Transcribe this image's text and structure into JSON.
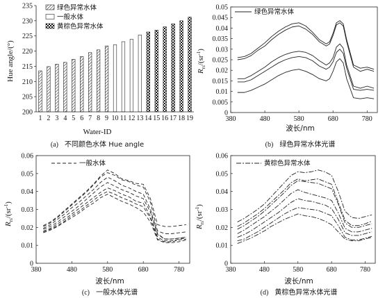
{
  "chart_data": [
    {
      "panel": "a",
      "type": "bar",
      "caption_label": "(a)",
      "caption_text": "不同颜色水体 Hue angle",
      "xlabel": "Water-ID",
      "ylabel": "Hue angle/(°)",
      "ylim": [
        200,
        235
      ],
      "yticks": [
        "200",
        "205",
        "210",
        "215",
        "220",
        "225",
        "230",
        "235"
      ],
      "categories": [
        "1",
        "2",
        "3",
        "4",
        "5",
        "6",
        "7",
        "8",
        "9",
        "10",
        "11",
        "12",
        "13",
        "14",
        "15",
        "16",
        "17",
        "18",
        "19"
      ],
      "groups": [
        "green",
        "green",
        "green",
        "green",
        "green",
        "green",
        "green",
        "green",
        "green",
        "normal",
        "normal",
        "normal",
        "normal",
        "brown",
        "brown",
        "brown",
        "brown",
        "brown",
        "brown"
      ],
      "values": [
        213.5,
        214.9,
        215.7,
        216.3,
        217.3,
        218.2,
        219.5,
        220.4,
        221.7,
        222.1,
        223.1,
        223.9,
        225.3,
        226.3,
        226.9,
        228.0,
        229.0,
        230.0,
        231.2
      ],
      "legend": [
        {
          "key": "green",
          "label": "绿色异常水体"
        },
        {
          "key": "normal",
          "label": "一般水体"
        },
        {
          "key": "brown",
          "label": "黄棕色异常水体"
        }
      ]
    },
    {
      "panel": "b",
      "type": "line",
      "caption_label": "(b)",
      "caption_text": "绿色异常水体光谱",
      "xlabel": "波长/nm",
      "ylabel_main": "R",
      "ylabel_sub": "rs",
      "ylabel_unit": "/(sr",
      "ylabel_exp": "-1",
      "ylabel_end": ")",
      "xlim": [
        380,
        810
      ],
      "ylim": [
        0,
        0.05
      ],
      "xticks": [
        "380",
        "480",
        "580",
        "680",
        "780"
      ],
      "yticks": [
        "0",
        "0.005",
        "0.01",
        "0.015",
        "0.02",
        "0.025",
        "0.03",
        "0.035",
        "0.04",
        "0.045",
        "0.05"
      ],
      "line_style": "solid",
      "legend": "绿色异常水体",
      "x": [
        400,
        420,
        440,
        460,
        480,
        500,
        520,
        540,
        560,
        580,
        600,
        620,
        640,
        660,
        670,
        680,
        690,
        700,
        710,
        720,
        740,
        760,
        780,
        800
      ],
      "series": [
        {
          "values": [
            0.026,
            0.0265,
            0.028,
            0.0305,
            0.033,
            0.036,
            0.0385,
            0.0405,
            0.042,
            0.0425,
            0.041,
            0.038,
            0.0345,
            0.0325,
            0.0335,
            0.0375,
            0.0425,
            0.0435,
            0.042,
            0.0345,
            0.0225,
            0.021,
            0.0215,
            0.0205
          ]
        },
        {
          "values": [
            0.025,
            0.0255,
            0.027,
            0.0295,
            0.0315,
            0.0345,
            0.037,
            0.039,
            0.0405,
            0.041,
            0.0395,
            0.037,
            0.0335,
            0.0315,
            0.0325,
            0.0365,
            0.0415,
            0.0425,
            0.041,
            0.0335,
            0.0215,
            0.0195,
            0.0205,
            0.0195
          ]
        },
        {
          "values": [
            0.016,
            0.016,
            0.0175,
            0.0195,
            0.0215,
            0.024,
            0.026,
            0.0275,
            0.0285,
            0.029,
            0.0285,
            0.027,
            0.0245,
            0.0225,
            0.0235,
            0.026,
            0.031,
            0.0325,
            0.0305,
            0.0225,
            0.0125,
            0.0115,
            0.0125,
            0.0115
          ]
        },
        {
          "values": [
            0.0145,
            0.0145,
            0.0155,
            0.0175,
            0.0195,
            0.0215,
            0.0235,
            0.025,
            0.026,
            0.0265,
            0.026,
            0.0245,
            0.022,
            0.0205,
            0.0215,
            0.024,
            0.0285,
            0.03,
            0.028,
            0.021,
            0.011,
            0.0105,
            0.011,
            0.0105
          ]
        },
        {
          "values": [
            0.0095,
            0.0095,
            0.0105,
            0.012,
            0.0135,
            0.0155,
            0.0175,
            0.019,
            0.02,
            0.0205,
            0.0195,
            0.018,
            0.016,
            0.015,
            0.016,
            0.0195,
            0.024,
            0.0255,
            0.0235,
            0.016,
            0.007,
            0.0065,
            0.007,
            0.0065
          ]
        }
      ]
    },
    {
      "panel": "c",
      "type": "line",
      "caption_label": "(c)",
      "caption_text": "一般水体光谱",
      "xlabel": "波长/nm",
      "ylabel_main": "R",
      "ylabel_sub": "rs",
      "ylabel_unit": "/(sr",
      "ylabel_exp": "-1",
      "ylabel_end": ")",
      "xlim": [
        380,
        810
      ],
      "ylim": [
        0,
        0.06
      ],
      "xticks": [
        "380",
        "480",
        "580",
        "680",
        "780"
      ],
      "yticks": [
        "0",
        "0.01",
        "0.02",
        "0.03",
        "0.04",
        "0.05",
        "0.06"
      ],
      "line_style": "dashed",
      "legend": "一般水体",
      "x": [
        400,
        420,
        440,
        460,
        480,
        500,
        520,
        540,
        560,
        580,
        600,
        620,
        640,
        660,
        680,
        700,
        720,
        740,
        760,
        780,
        800
      ],
      "series": [
        {
          "values": [
            0.021,
            0.023,
            0.026,
            0.0295,
            0.033,
            0.0365,
            0.04,
            0.044,
            0.0485,
            0.052,
            0.05,
            0.047,
            0.046,
            0.0445,
            0.044,
            0.036,
            0.0215,
            0.0205,
            0.0205,
            0.021,
            0.0215
          ]
        },
        {
          "values": [
            0.0205,
            0.0225,
            0.0255,
            0.029,
            0.0325,
            0.036,
            0.0395,
            0.0435,
            0.048,
            0.0505,
            0.049,
            0.0465,
            0.0455,
            0.0435,
            0.0425,
            0.034,
            0.018,
            0.0165,
            0.0165,
            0.017,
            0.0175
          ]
        },
        {
          "values": [
            0.0195,
            0.0215,
            0.0245,
            0.0275,
            0.031,
            0.034,
            0.0375,
            0.041,
            0.045,
            0.048,
            0.046,
            0.0435,
            0.042,
            0.04,
            0.0385,
            0.03,
            0.0165,
            0.0135,
            0.0135,
            0.014,
            0.0145
          ]
        },
        {
          "values": [
            0.019,
            0.0205,
            0.023,
            0.026,
            0.029,
            0.032,
            0.0355,
            0.039,
            0.0425,
            0.045,
            0.043,
            0.041,
            0.0395,
            0.0375,
            0.036,
            0.0285,
            0.016,
            0.0135,
            0.0135,
            0.014,
            0.0145
          ]
        },
        {
          "values": [
            0.018,
            0.0195,
            0.022,
            0.0245,
            0.0275,
            0.0305,
            0.0335,
            0.0365,
            0.0395,
            0.042,
            0.0405,
            0.0385,
            0.037,
            0.0345,
            0.0335,
            0.026,
            0.0145,
            0.0125,
            0.0125,
            0.0135,
            0.014
          ]
        },
        {
          "values": [
            0.0175,
            0.019,
            0.021,
            0.0235,
            0.0265,
            0.029,
            0.032,
            0.035,
            0.038,
            0.04,
            0.0385,
            0.0365,
            0.035,
            0.033,
            0.0315,
            0.025,
            0.0135,
            0.012,
            0.012,
            0.013,
            0.0135
          ]
        },
        {
          "values": [
            0.017,
            0.0185,
            0.0205,
            0.023,
            0.0255,
            0.028,
            0.031,
            0.0335,
            0.0365,
            0.0385,
            0.0365,
            0.0345,
            0.033,
            0.031,
            0.0285,
            0.023,
            0.013,
            0.0115,
            0.0115,
            0.012,
            0.013
          ]
        }
      ]
    },
    {
      "panel": "d",
      "type": "line",
      "caption_label": "(d)",
      "caption_text": "黄棕色异常水体光谱",
      "xlabel": "波长/nm",
      "ylabel_main": "R",
      "ylabel_sub": "rs",
      "ylabel_unit": "/(sr",
      "ylabel_exp": "-1",
      "ylabel_end": ")",
      "xlim": [
        380,
        810
      ],
      "ylim": [
        0,
        0.06
      ],
      "xticks": [
        "380",
        "480",
        "580",
        "680",
        "780"
      ],
      "yticks": [
        "0",
        "0.01",
        "0.02",
        "0.03",
        "0.04",
        "0.05",
        "0.06"
      ],
      "line_style": "dashdot",
      "legend": "黄棕色异常水体",
      "x": [
        400,
        420,
        440,
        460,
        480,
        500,
        520,
        540,
        560,
        580,
        600,
        620,
        640,
        660,
        680,
        700,
        720,
        740,
        760,
        780,
        800
      ],
      "series": [
        {
          "values": [
            0.023,
            0.025,
            0.0275,
            0.03,
            0.033,
            0.037,
            0.041,
            0.045,
            0.049,
            0.051,
            0.0505,
            0.051,
            0.052,
            0.051,
            0.049,
            0.04,
            0.029,
            0.0255,
            0.025,
            0.026,
            0.027
          ]
        },
        {
          "values": [
            0.0205,
            0.0225,
            0.025,
            0.0275,
            0.0305,
            0.034,
            0.0375,
            0.041,
            0.045,
            0.047,
            0.046,
            0.0465,
            0.047,
            0.0455,
            0.044,
            0.034,
            0.024,
            0.021,
            0.021,
            0.022,
            0.0235
          ]
        },
        {
          "values": [
            0.019,
            0.021,
            0.0235,
            0.026,
            0.029,
            0.0325,
            0.036,
            0.0395,
            0.0435,
            0.046,
            0.0455,
            0.045,
            0.0445,
            0.043,
            0.0415,
            0.033,
            0.0225,
            0.02,
            0.02,
            0.021,
            0.022
          ]
        },
        {
          "values": [
            0.0165,
            0.0185,
            0.021,
            0.0235,
            0.026,
            0.029,
            0.032,
            0.0355,
            0.039,
            0.041,
            0.0395,
            0.0385,
            0.0375,
            0.0365,
            0.035,
            0.028,
            0.0195,
            0.0175,
            0.0175,
            0.0185,
            0.0195
          ]
        },
        {
          "values": [
            0.0145,
            0.016,
            0.018,
            0.0205,
            0.023,
            0.0255,
            0.028,
            0.031,
            0.034,
            0.036,
            0.035,
            0.0345,
            0.0335,
            0.0325,
            0.0305,
            0.0245,
            0.017,
            0.0155,
            0.0155,
            0.0165,
            0.0175
          ]
        },
        {
          "values": [
            0.0125,
            0.0135,
            0.0155,
            0.0175,
            0.02,
            0.0225,
            0.025,
            0.0275,
            0.0295,
            0.031,
            0.0305,
            0.03,
            0.0295,
            0.028,
            0.0265,
            0.021,
            0.0145,
            0.013,
            0.013,
            0.014,
            0.015
          ]
        },
        {
          "values": [
            0.011,
            0.0125,
            0.014,
            0.016,
            0.018,
            0.0205,
            0.0225,
            0.0245,
            0.026,
            0.0275,
            0.0265,
            0.026,
            0.025,
            0.0235,
            0.0215,
            0.0175,
            0.0135,
            0.0125,
            0.0125,
            0.0135,
            0.0145
          ]
        }
      ]
    }
  ]
}
